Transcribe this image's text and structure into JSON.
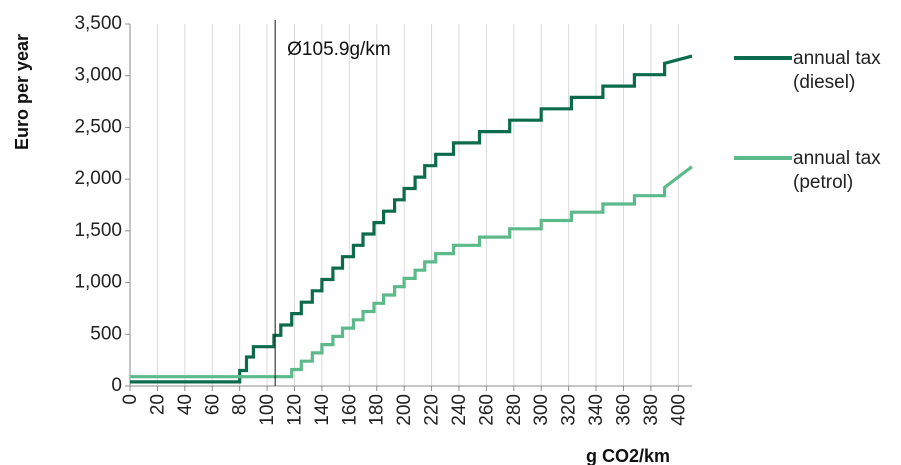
{
  "chart_data": {
    "type": "line",
    "title": "",
    "xlabel": "g CO2/km",
    "ylabel": "Euro per year",
    "xlim": [
      0,
      410
    ],
    "ylim": [
      0,
      3500
    ],
    "grid": "vertical",
    "legend_position": "right",
    "x_ticks": [
      "0",
      "20",
      "40",
      "60",
      "80",
      "100",
      "120",
      "140",
      "160",
      "180",
      "200",
      "220",
      "240",
      "260",
      "280",
      "300",
      "320",
      "340",
      "360",
      "380",
      "400"
    ],
    "y_ticks": [
      "0",
      "500",
      "1,000",
      "1,500",
      "2,000",
      "2,500",
      "3,000",
      "3,500"
    ],
    "annotation": {
      "label": "Ø105.9g/km",
      "x": 105.9
    },
    "series": [
      {
        "name": "annual tax\n(diesel)",
        "color": "#0d6b4d",
        "x": [
          0,
          80,
          80,
          85,
          85,
          90,
          90,
          105,
          105,
          110,
          110,
          118,
          118,
          125,
          125,
          133,
          133,
          140,
          140,
          148,
          148,
          155,
          155,
          163,
          163,
          170,
          170,
          178,
          178,
          185,
          185,
          193,
          193,
          200,
          200,
          208,
          208,
          215,
          215,
          223,
          223,
          236,
          236,
          255,
          255,
          277,
          277,
          300,
          300,
          322,
          322,
          345,
          345,
          368,
          368,
          390,
          390,
          410
        ],
        "y": [
          40,
          40,
          150,
          150,
          280,
          280,
          380,
          380,
          490,
          490,
          590,
          590,
          700,
          700,
          810,
          810,
          920,
          920,
          1030,
          1030,
          1140,
          1140,
          1250,
          1250,
          1360,
          1360,
          1470,
          1470,
          1580,
          1580,
          1690,
          1690,
          1800,
          1800,
          1910,
          1910,
          2020,
          2020,
          2130,
          2130,
          2240,
          2240,
          2350,
          2350,
          2460,
          2460,
          2570,
          2570,
          2680,
          2680,
          2790,
          2790,
          2900,
          2900,
          3010,
          3010,
          3120,
          3190
        ]
      },
      {
        "name": "annual tax\n(petrol)",
        "color": "#5cba8a",
        "x": [
          0,
          80,
          80,
          85,
          85,
          90,
          90,
          105,
          105,
          110,
          110,
          118,
          118,
          125,
          125,
          133,
          133,
          140,
          140,
          148,
          148,
          155,
          155,
          163,
          163,
          170,
          170,
          178,
          178,
          185,
          185,
          193,
          193,
          200,
          200,
          208,
          208,
          215,
          215,
          223,
          223,
          236,
          236,
          255,
          255,
          277,
          277,
          300,
          300,
          322,
          322,
          345,
          345,
          368,
          368,
          390,
          390,
          410
        ],
        "y": [
          90,
          90,
          90,
          90,
          90,
          90,
          90,
          90,
          90,
          90,
          90,
          90,
          160,
          160,
          240,
          240,
          320,
          320,
          400,
          400,
          480,
          480,
          560,
          560,
          640,
          640,
          720,
          720,
          800,
          800,
          880,
          880,
          960,
          960,
          1040,
          1040,
          1120,
          1120,
          1200,
          1200,
          1280,
          1280,
          1360,
          1360,
          1440,
          1440,
          1520,
          1520,
          1600,
          1600,
          1680,
          1680,
          1760,
          1760,
          1840,
          1840,
          1920,
          2120
        ]
      }
    ]
  }
}
